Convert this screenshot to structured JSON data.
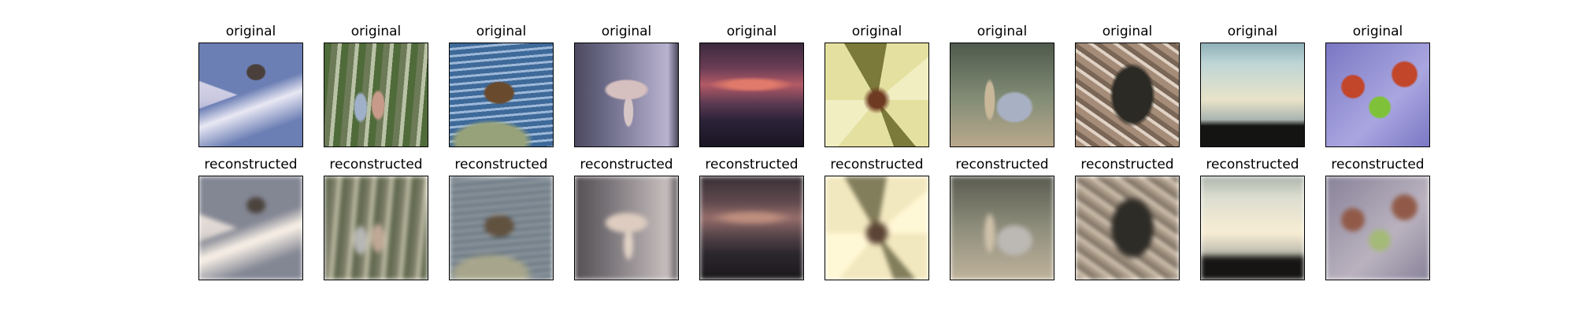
{
  "row_labels": {
    "top": "original",
    "bottom": "reconstructed"
  },
  "columns": [
    {
      "subject": "bird-on-rooftop",
      "original_label": "original",
      "reconstructed_label": "reconstructed",
      "colors": {
        "sky": "#c9c8e0",
        "main": "#6c7fb4",
        "accent": "#4a3f3a",
        "light": "#e9e8f4"
      }
    },
    {
      "subject": "people-in-forest",
      "original_label": "original",
      "reconstructed_label": "reconstructed",
      "colors": {
        "sky": "#6d7a57",
        "main": "#4f6b3a",
        "accent": "#9fb0c8",
        "light": "#b9c2a6"
      }
    },
    {
      "subject": "eagle-on-rock",
      "original_label": "original",
      "reconstructed_label": "reconstructed",
      "colors": {
        "sky": "#3e6a9a",
        "main": "#6a4a2c",
        "accent": "#97a27a",
        "light": "#9db8d8"
      }
    },
    {
      "subject": "mushroom",
      "original_label": "original",
      "reconstructed_label": "reconstructed",
      "colors": {
        "sky": "#6b6a87",
        "main": "#d6bfbf",
        "accent": "#4d4a5f",
        "light": "#b9b3d0"
      }
    },
    {
      "subject": "sunset-over-sea",
      "original_label": "original",
      "reconstructed_label": "reconstructed",
      "colors": {
        "sky": "#6e3e56",
        "main": "#e07a6a",
        "accent": "#2b2238",
        "light": "#b35a66"
      }
    },
    {
      "subject": "lily-flower",
      "original_label": "original",
      "reconstructed_label": "reconstructed",
      "colors": {
        "sky": "#7c7a3a",
        "main": "#e4e0a0",
        "accent": "#6e3a22",
        "light": "#f1eec2"
      }
    },
    {
      "subject": "flamingo-bird",
      "original_label": "original",
      "reconstructed_label": "reconstructed",
      "colors": {
        "sky": "#4f5a4c",
        "main": "#a8b0c3",
        "accent": "#c9b79a",
        "light": "#7f8a74"
      }
    },
    {
      "subject": "dark-leaf-texture",
      "original_label": "original",
      "reconstructed_label": "reconstructed",
      "colors": {
        "sky": "#a58c78",
        "main": "#2c2a24",
        "accent": "#e0d2c4",
        "light": "#7a6656"
      }
    },
    {
      "subject": "seaside-horizon",
      "original_label": "original",
      "reconstructed_label": "reconstructed",
      "colors": {
        "sky": "#bfd6d6",
        "main": "#e8e3c8",
        "accent": "#141412",
        "light": "#8fb0b8"
      }
    },
    {
      "subject": "apples-on-purple-cloth",
      "original_label": "original",
      "reconstructed_label": "reconstructed",
      "colors": {
        "sky": "#7b78c4",
        "main": "#c2462a",
        "accent": "#7fc23a",
        "light": "#a9a6e0"
      }
    }
  ]
}
